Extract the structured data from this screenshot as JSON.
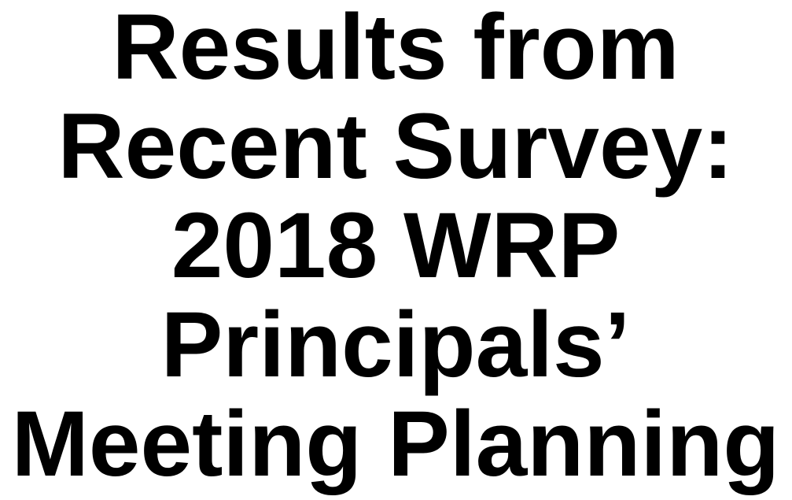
{
  "title_lines": [
    "Results from",
    "Recent Survey:",
    "2018 WRP",
    "Principals’",
    "Meeting Planning"
  ]
}
